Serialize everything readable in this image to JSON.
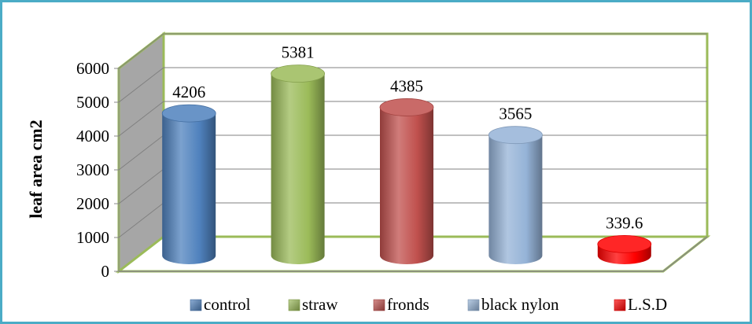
{
  "chart_data": {
    "type": "bar",
    "title": "",
    "xlabel": "",
    "ylabel": "leaf area  cm2",
    "ylim": [
      0,
      6000
    ],
    "yticks": [
      0,
      1000,
      2000,
      3000,
      4000,
      5000,
      6000
    ],
    "grid": true,
    "legend_position": "bottom",
    "series": [
      {
        "name": "control",
        "value": 4206,
        "label": "4206",
        "color": "#4f81bd"
      },
      {
        "name": "straw",
        "value": 5381,
        "label": "5381",
        "color": "#9bbb59"
      },
      {
        "name": "fronds",
        "value": 4385,
        "label": "4385",
        "color": "#c0504d"
      },
      {
        "name": "black nylon",
        "value": 3565,
        "label": "3565",
        "color": "#95b3d7"
      },
      {
        "name": "L.S.D",
        "value": 339.6,
        "label": "339.6",
        "color": "#ff0000"
      }
    ]
  }
}
